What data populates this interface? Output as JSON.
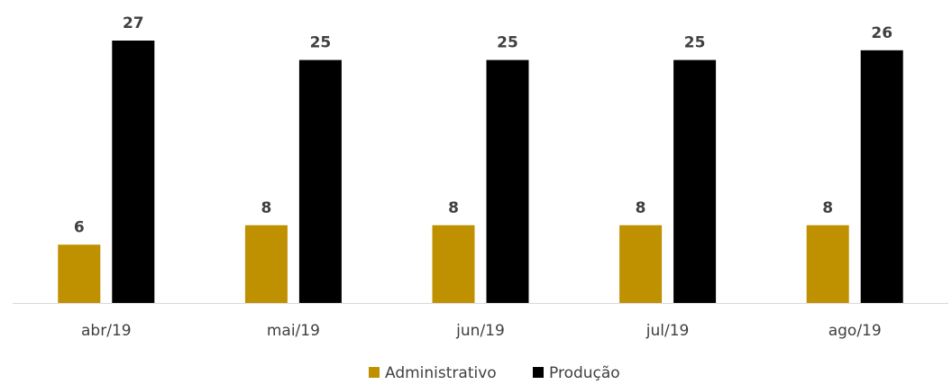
{
  "chart_data": {
    "type": "bar",
    "categories": [
      "abr/19",
      "mai/19",
      "jun/19",
      "jul/19",
      "ago/19"
    ],
    "series": [
      {
        "name": "Administrativo",
        "values": [
          6,
          8,
          8,
          8,
          8
        ],
        "color": "#BF9000"
      },
      {
        "name": "Produção",
        "values": [
          27,
          25,
          25,
          25,
          26
        ],
        "color": "#000000"
      }
    ],
    "title": "",
    "xlabel": "",
    "ylabel": "",
    "ylim": [
      0,
      27
    ],
    "grid": false,
    "data_labels": true,
    "legend_position": "bottom"
  },
  "colors": {
    "axis": "#D9D9D9",
    "text": "#404040"
  }
}
